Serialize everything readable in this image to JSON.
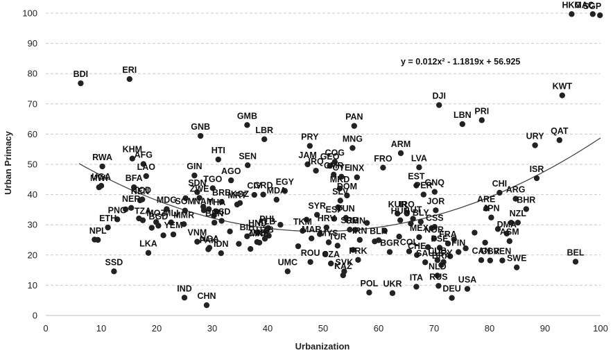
{
  "chart_data": {
    "type": "scatter",
    "title": "",
    "xlabel": "Urbanization",
    "ylabel": "Urban Primacy",
    "xlim": [
      0,
      100
    ],
    "ylim": [
      0,
      100
    ],
    "x_ticks": [
      0,
      10,
      20,
      30,
      40,
      50,
      60,
      70,
      80,
      90,
      100
    ],
    "y_ticks": [
      0,
      10,
      20,
      30,
      40,
      50,
      60,
      70,
      80,
      90,
      100
    ],
    "grid": "horizontal dashed",
    "legend": "none",
    "marker_color": "#222222",
    "trendline": {
      "kind": "polynomial-2",
      "equation": "y = 0.012x² - 1.1819x + 56.925",
      "a": 0.012,
      "b": -1.1819,
      "c": 56.925,
      "x_range": [
        6,
        100
      ],
      "color": "#444444"
    },
    "labeled_points": [
      {
        "label": "HKG",
        "x": 94.8,
        "y": 99.7
      },
      {
        "label": "MAC",
        "x": 98.6,
        "y": 99.7
      },
      {
        "label": "SGP",
        "x": 99.9,
        "y": 99.3
      },
      {
        "label": "BDI",
        "x": 6.3,
        "y": 76.8
      },
      {
        "label": "ERI",
        "x": 15.1,
        "y": 78.2
      },
      {
        "label": "KWT",
        "x": 93.1,
        "y": 72.8
      },
      {
        "label": "DJI",
        "x": 70.9,
        "y": 69.6
      },
      {
        "label": "PRI",
        "x": 78.6,
        "y": 64.6
      },
      {
        "label": "LBN",
        "x": 75.1,
        "y": 63.3
      },
      {
        "label": "GMB",
        "x": 36.3,
        "y": 63.0
      },
      {
        "label": "PAN",
        "x": 55.6,
        "y": 62.7
      },
      {
        "label": "GNB",
        "x": 27.9,
        "y": 59.4
      },
      {
        "label": "LBR",
        "x": 39.4,
        "y": 58.3
      },
      {
        "label": "QAT",
        "x": 92.6,
        "y": 58.0
      },
      {
        "label": "URY",
        "x": 88.2,
        "y": 56.3
      },
      {
        "label": "PRY",
        "x": 47.6,
        "y": 56.1
      },
      {
        "label": "MNG",
        "x": 55.3,
        "y": 55.4
      },
      {
        "label": "ARM",
        "x": 64.0,
        "y": 53.7
      },
      {
        "label": "LVA",
        "x": 67.3,
        "y": 49.0
      },
      {
        "label": "RWA",
        "x": 10.2,
        "y": 49.3
      },
      {
        "label": "KHM",
        "x": 15.6,
        "y": 51.9
      },
      {
        "label": "AFG",
        "x": 17.6,
        "y": 50.1
      },
      {
        "label": "COG",
        "x": 52.1,
        "y": 50.8
      },
      {
        "label": "GEO",
        "x": 51.2,
        "y": 49.5
      },
      {
        "label": "SEN",
        "x": 36.4,
        "y": 49.7
      },
      {
        "label": "HTI",
        "x": 31.1,
        "y": 51.6
      },
      {
        "label": "GIN",
        "x": 26.8,
        "y": 46.3
      },
      {
        "label": "JAM",
        "x": 47.2,
        "y": 50.0
      },
      {
        "label": "IRQ",
        "x": 48.7,
        "y": 47.9
      },
      {
        "label": "CMR",
        "x": 51.9,
        "y": 46.6
      },
      {
        "label": "CYE",
        "x": 53.3,
        "y": 45.9
      },
      {
        "label": "INX",
        "x": 56.1,
        "y": 45.7
      },
      {
        "label": "FRO",
        "x": 60.8,
        "y": 48.9
      },
      {
        "label": "LAO",
        "x": 18.1,
        "y": 46.1
      },
      {
        "label": "AGO",
        "x": 33.4,
        "y": 44.7
      },
      {
        "label": "ISR",
        "x": 88.5,
        "y": 45.4
      },
      {
        "label": "UGA",
        "x": 10.0,
        "y": 42.9
      },
      {
        "label": "BFA",
        "x": 15.9,
        "y": 42.4
      },
      {
        "label": "TGO",
        "x": 30.1,
        "y": 42.1
      },
      {
        "label": "EST",
        "x": 66.8,
        "y": 43.0
      },
      {
        "label": "GNQ",
        "x": 70.1,
        "y": 40.9
      },
      {
        "label": "MWI",
        "x": 9.6,
        "y": 42.4
      },
      {
        "label": "TCD",
        "x": 17.4,
        "y": 38.4
      },
      {
        "label": "KEN",
        "x": 17.0,
        "y": 38.1
      },
      {
        "label": "SDN",
        "x": 27.3,
        "y": 40.8
      },
      {
        "label": "ZWE",
        "x": 27.7,
        "y": 38.9
      },
      {
        "label": "BRB",
        "x": 31.7,
        "y": 37.6
      },
      {
        "label": "KGZ",
        "x": 35.0,
        "y": 37.2
      },
      {
        "label": "CIV",
        "x": 37.6,
        "y": 39.9
      },
      {
        "label": "GRD",
        "x": 39.2,
        "y": 40.0
      },
      {
        "label": "EGY",
        "x": 43.1,
        "y": 41.2
      },
      {
        "label": "MDA",
        "x": 41.6,
        "y": 38.3
      },
      {
        "label": "CHI",
        "x": 81.8,
        "y": 40.6
      },
      {
        "label": "PER",
        "x": 68.1,
        "y": 40.0
      },
      {
        "label": "MKD",
        "x": 53.0,
        "y": 42.0
      },
      {
        "label": "DOM",
        "x": 54.3,
        "y": 39.7
      },
      {
        "label": "ARG",
        "x": 84.7,
        "y": 38.6
      },
      {
        "label": "ARE",
        "x": 79.4,
        "y": 35.4
      },
      {
        "label": "BHR",
        "x": 86.6,
        "y": 35.2
      },
      {
        "label": "NER",
        "x": 15.4,
        "y": 35.6
      },
      {
        "label": "MDG",
        "x": 21.8,
        "y": 35.2
      },
      {
        "label": "SOM",
        "x": 25.1,
        "y": 34.7
      },
      {
        "label": "NAM",
        "x": 28.5,
        "y": 34.8
      },
      {
        "label": "MRT",
        "x": 34.5,
        "y": 36.7
      },
      {
        "label": "THA",
        "x": 30.8,
        "y": 34.4
      },
      {
        "label": "MLI",
        "x": 22.6,
        "y": 30.8
      },
      {
        "label": "PNG",
        "x": 12.9,
        "y": 31.8
      },
      {
        "label": "TZA",
        "x": 17.5,
        "y": 31.5
      },
      {
        "label": "MOZ",
        "x": 19.9,
        "y": 30.9
      },
      {
        "label": "MMR",
        "x": 24.9,
        "y": 30.2
      },
      {
        "label": "JPN",
        "x": 80.3,
        "y": 32.4
      },
      {
        "label": "NZL",
        "x": 85.1,
        "y": 30.7
      },
      {
        "label": "KUR",
        "x": 63.4,
        "y": 33.7
      },
      {
        "label": "IRO",
        "x": 65.1,
        "y": 33.7
      },
      {
        "label": "JOR",
        "x": 70.3,
        "y": 34.8
      },
      {
        "label": "AUT",
        "x": 66.2,
        "y": 32.0
      },
      {
        "label": "HUN",
        "x": 63.9,
        "y": 31.5
      },
      {
        "label": "BLY",
        "x": 67.6,
        "y": 31.0
      },
      {
        "label": "CSS",
        "x": 70.1,
        "y": 29.3
      },
      {
        "label": "SLV",
        "x": 53.1,
        "y": 38.0
      },
      {
        "label": "SYR",
        "x": 48.9,
        "y": 33.3
      },
      {
        "label": "TUN",
        "x": 54.1,
        "y": 32.3
      },
      {
        "label": "BEN",
        "x": 30.4,
        "y": 30.7
      },
      {
        "label": "SSD",
        "x": 31.7,
        "y": 31.3
      },
      {
        "label": "PHL",
        "x": 40.1,
        "y": 28.9
      },
      {
        "label": "HND",
        "x": 38.2,
        "y": 27.5
      },
      {
        "label": "DMA",
        "x": 83.1,
        "y": 27.1
      },
      {
        "label": "ASM",
        "x": 83.6,
        "y": 24.6
      },
      {
        "label": "MEX",
        "x": 67.3,
        "y": 25.9
      },
      {
        "label": "NOR",
        "x": 70.0,
        "y": 25.4
      },
      {
        "label": "ETH",
        "x": 11.2,
        "y": 29.1
      },
      {
        "label": "BGD",
        "x": 20.3,
        "y": 29.7
      },
      {
        "label": "NPL",
        "x": 9.4,
        "y": 25.0
      },
      {
        "label": "YEM",
        "x": 23.0,
        "y": 26.8
      },
      {
        "label": "VNM",
        "x": 27.3,
        "y": 24.4
      },
      {
        "label": "LKA",
        "x": 18.5,
        "y": 20.7
      },
      {
        "label": "PAK",
        "x": 29.3,
        "y": 21.9
      },
      {
        "label": "BIH",
        "x": 36.3,
        "y": 26.2
      },
      {
        "label": "ZMB",
        "x": 38.1,
        "y": 24.3
      },
      {
        "label": "UZB",
        "x": 39.5,
        "y": 25.4
      },
      {
        "label": "ALB",
        "x": 39.8,
        "y": 28.1
      },
      {
        "label": "MNE",
        "x": 38.5,
        "y": 24.1
      },
      {
        "label": "TKM",
        "x": 46.3,
        "y": 28.0
      },
      {
        "label": "MAR",
        "x": 47.9,
        "y": 25.5
      },
      {
        "label": "MYS",
        "x": 51.0,
        "y": 24.2
      },
      {
        "label": "TUR",
        "x": 52.6,
        "y": 23.1
      },
      {
        "label": "HRV",
        "x": 50.6,
        "y": 29.1
      },
      {
        "label": "SRB",
        "x": 54.8,
        "y": 28.4
      },
      {
        "label": "ESP",
        "x": 52.0,
        "y": 32.0
      },
      {
        "label": "OMN",
        "x": 55.8,
        "y": 28.3
      },
      {
        "label": "IRN",
        "x": 56.6,
        "y": 25.0
      },
      {
        "label": "BLR",
        "x": 60.0,
        "y": 24.9
      },
      {
        "label": "BGR",
        "x": 62.0,
        "y": 21.0
      },
      {
        "label": "COL",
        "x": 65.5,
        "y": 21.2
      },
      {
        "label": "CHE",
        "x": 66.9,
        "y": 20.0
      },
      {
        "label": "SAU",
        "x": 68.4,
        "y": 17.6
      },
      {
        "label": "FIN",
        "x": 74.4,
        "y": 21.0
      },
      {
        "label": "FRA",
        "x": 72.5,
        "y": 23.8
      },
      {
        "label": "PSE",
        "x": 71.0,
        "y": 22.4
      },
      {
        "label": "CUB",
        "x": 70.6,
        "y": 18.3
      },
      {
        "label": "URY",
        "x": 71.7,
        "y": 17.7
      },
      {
        "label": "CAN",
        "x": 78.5,
        "y": 18.3
      },
      {
        "label": "BRA",
        "x": 71.3,
        "y": 16.7
      },
      {
        "label": "GBR",
        "x": 80.1,
        "y": 18.2
      },
      {
        "label": "VEN",
        "x": 82.3,
        "y": 18.2
      },
      {
        "label": "SWE",
        "x": 84.9,
        "y": 15.9
      },
      {
        "label": "NLD",
        "x": 70.6,
        "y": 13.2
      },
      {
        "label": "NGA",
        "x": 29.5,
        "y": 22.4
      },
      {
        "label": "IDN",
        "x": 31.6,
        "y": 20.6
      },
      {
        "label": "UMC",
        "x": 43.6,
        "y": 14.6
      },
      {
        "label": "ROU",
        "x": 47.7,
        "y": 17.7
      },
      {
        "label": "SVK",
        "x": 53.8,
        "y": 14.6
      },
      {
        "label": "CZA",
        "x": 51.4,
        "y": 17.2
      },
      {
        "label": "PRK",
        "x": 56.3,
        "y": 18.4
      },
      {
        "label": "KAZ",
        "x": 53.6,
        "y": 13.3
      },
      {
        "label": "POL",
        "x": 58.3,
        "y": 7.6
      },
      {
        "label": "UKR",
        "x": 62.5,
        "y": 7.4
      },
      {
        "label": "ITA",
        "x": 66.8,
        "y": 9.5
      },
      {
        "label": "RUS",
        "x": 70.8,
        "y": 9.8
      },
      {
        "label": "DEU",
        "x": 73.2,
        "y": 5.8
      },
      {
        "label": "USA",
        "x": 76.0,
        "y": 8.8
      },
      {
        "label": "SSD",
        "x": 12.3,
        "y": 14.6
      },
      {
        "label": "IND",
        "x": 25.0,
        "y": 5.9
      },
      {
        "label": "CHN",
        "x": 29.0,
        "y": 3.4
      },
      {
        "label": "BEL",
        "x": 95.5,
        "y": 17.8
      }
    ],
    "unlabeled_points": [
      {
        "x": 8.8,
        "y": 25.1
      },
      {
        "x": 14.4,
        "y": 35.1
      },
      {
        "x": 16.8,
        "y": 32.1
      },
      {
        "x": 19.1,
        "y": 29.0
      },
      {
        "x": 21.2,
        "y": 26.5
      },
      {
        "x": 25.2,
        "y": 38.8
      },
      {
        "x": 28.4,
        "y": 36.0
      },
      {
        "x": 29.4,
        "y": 35.2
      },
      {
        "x": 30.3,
        "y": 33.0
      },
      {
        "x": 33.2,
        "y": 27.8
      },
      {
        "x": 34.8,
        "y": 23.7
      },
      {
        "x": 36.9,
        "y": 22.0
      },
      {
        "x": 40.2,
        "y": 26.4
      },
      {
        "x": 42.3,
        "y": 30.0
      },
      {
        "x": 45.5,
        "y": 22.9
      },
      {
        "x": 47.0,
        "y": 31.7
      },
      {
        "x": 49.4,
        "y": 26.9
      },
      {
        "x": 50.4,
        "y": 20.4
      },
      {
        "x": 52.7,
        "y": 35.8
      },
      {
        "x": 55.4,
        "y": 21.7
      },
      {
        "x": 57.9,
        "y": 30.6
      },
      {
        "x": 59.3,
        "y": 24.5
      },
      {
        "x": 61.1,
        "y": 28.0
      },
      {
        "x": 63.7,
        "y": 26.1
      },
      {
        "x": 65.8,
        "y": 30.4
      },
      {
        "x": 68.9,
        "y": 22.6
      },
      {
        "x": 69.6,
        "y": 28.9
      },
      {
        "x": 72.9,
        "y": 19.6
      },
      {
        "x": 73.6,
        "y": 25.2
      },
      {
        "x": 75.7,
        "y": 22.2
      },
      {
        "x": 77.3,
        "y": 27.4
      },
      {
        "x": 79.2,
        "y": 24.1
      },
      {
        "x": 81.5,
        "y": 28.6
      },
      {
        "x": 83.9,
        "y": 30.7
      }
    ]
  }
}
